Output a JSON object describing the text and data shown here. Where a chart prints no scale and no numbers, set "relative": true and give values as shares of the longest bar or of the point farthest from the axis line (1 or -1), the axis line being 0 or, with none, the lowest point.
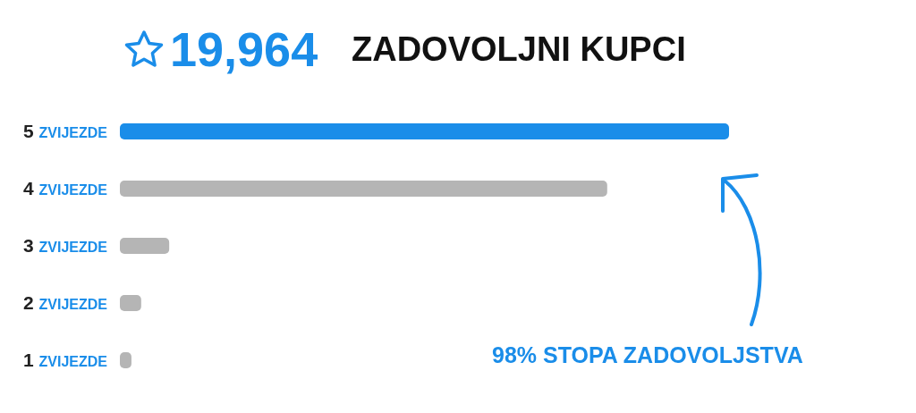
{
  "chart_data": {
    "type": "bar",
    "orientation": "horizontal",
    "relative": true,
    "title": "ZADOVOLJNI KUPCI",
    "categories": [
      "5 ZVIJEZDE",
      "4 ZVIJEZDE",
      "3 ZVIJEZDE",
      "2 ZVIJEZDE",
      "1 ZVIJEZDE"
    ],
    "values": [
      1,
      0.8,
      0.081,
      0.035,
      0.019
    ],
    "colors": [
      "#1a8de9",
      "#b5b5b5",
      "#b5b5b5",
      "#b5b5b5",
      "#b5b5b5"
    ],
    "annotations": [
      "19,964",
      "98% STOPA ZADOVOLJSTVA"
    ]
  }
}
